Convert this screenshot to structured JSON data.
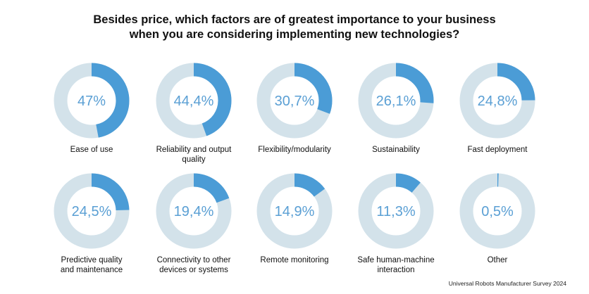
{
  "title_line1": "Besides price, which factors are of greatest importance to your business",
  "title_line2": "when you are considering implementing new technologies?",
  "source": "Universal Robots Manufacturer Survey 2024",
  "colors": {
    "value": "#4b9cd6",
    "track": "#d3e2ea",
    "text": "#5a9fd4"
  },
  "chart_data": {
    "type": "donut",
    "unit": "%",
    "categories": [
      "Ease of use",
      "Reliability and output quality",
      "Flexibility/modularity",
      "Sustainability",
      "Fast deployment",
      "Predictive quality and maintenance",
      "Connectivity to other devices or systems",
      "Remote monitoring",
      "Safe human-machine interaction",
      "Other"
    ],
    "labels": [
      [
        "Ease of use"
      ],
      [
        "Reliability and output quality"
      ],
      [
        "Flexibility/modularity"
      ],
      [
        "Sustainability"
      ],
      [
        "Fast deployment"
      ],
      [
        "Predictive quality",
        "and maintenance"
      ],
      [
        "Connectivity to other",
        "devices or systems"
      ],
      [
        "Remote monitoring"
      ],
      [
        "Safe human-machine",
        "interaction"
      ],
      [
        "Other"
      ]
    ],
    "value_labels": [
      "47%",
      "44,4%",
      "30,7%",
      "26,1%",
      "24,8%",
      "24,5%",
      "19,4%",
      "14,9%",
      "11,3%",
      "0,5%"
    ],
    "values": [
      47,
      44.4,
      30.7,
      26.1,
      24.8,
      24.5,
      19.4,
      14.9,
      11.3,
      0.5
    ]
  }
}
